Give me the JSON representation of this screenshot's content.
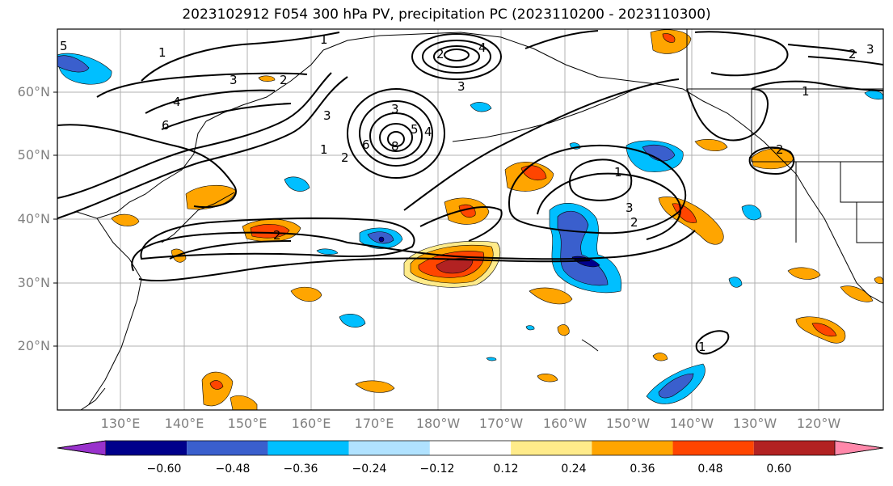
{
  "title": "2023102912 F054 300 hPa PV, precipitation PC (2023110200 - 2023110300)",
  "latitude_labels": [
    "60°N",
    "50°N",
    "40°N",
    "30°N",
    "20°N"
  ],
  "longitude_labels": [
    "130°E",
    "140°E",
    "150°E",
    "160°E",
    "170°E",
    "180°W",
    "170°W",
    "160°W",
    "150°W",
    "140°W",
    "130°W",
    "120°W"
  ],
  "colorbar": {
    "ticks": [
      "−0.60",
      "−0.48",
      "−0.36",
      "−0.24",
      "−0.12",
      "0.12",
      "0.24",
      "0.36",
      "0.48",
      "0.60"
    ],
    "colors": [
      "#9932cc",
      "#00008b",
      "#3a5fcd",
      "#00bfff",
      "#b0e2ff",
      "#ffffff",
      "#ffeb8a",
      "#ffa500",
      "#ff4500",
      "#b22222",
      "#ff88aa"
    ]
  },
  "contour_labels": [
    "1",
    "2",
    "3",
    "4",
    "5",
    "6",
    "1",
    "2",
    "3",
    "2",
    "3",
    "4",
    "5",
    "6",
    "8",
    "1",
    "2",
    "3",
    "4",
    "2",
    "3",
    "1",
    "1",
    "2",
    "3",
    "1",
    "2"
  ]
}
